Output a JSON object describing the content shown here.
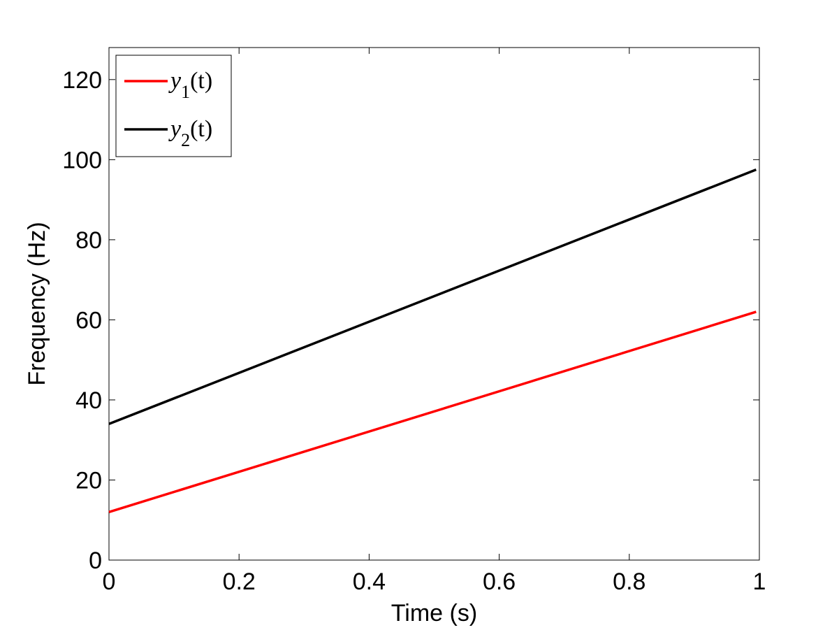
{
  "chart_data": {
    "type": "line",
    "xlabel": "Time (s)",
    "ylabel": "Frequency (Hz)",
    "xlim": [
      0,
      1
    ],
    "ylim": [
      0,
      128
    ],
    "xticks": [
      0,
      0.2,
      0.4,
      0.6,
      0.8,
      1
    ],
    "xtick_labels": [
      "0",
      "0.2",
      "0.4",
      "0.6",
      "0.8",
      "1"
    ],
    "yticks": [
      0,
      20,
      40,
      60,
      80,
      100,
      120
    ],
    "ytick_labels": [
      "0",
      "20",
      "40",
      "60",
      "80",
      "100",
      "120"
    ],
    "grid": false,
    "legend_position": "top-left",
    "series": [
      {
        "name": "y1(t)",
        "base": "y",
        "sub": "1",
        "arg": "(t)",
        "color": "#ff0000",
        "x": [
          0,
          0.995
        ],
        "y": [
          12,
          62
        ]
      },
      {
        "name": "y2(t)",
        "base": "y",
        "sub": "2",
        "arg": "(t)",
        "color": "#000000",
        "x": [
          0,
          0.995
        ],
        "y": [
          34,
          97.5
        ]
      }
    ]
  }
}
